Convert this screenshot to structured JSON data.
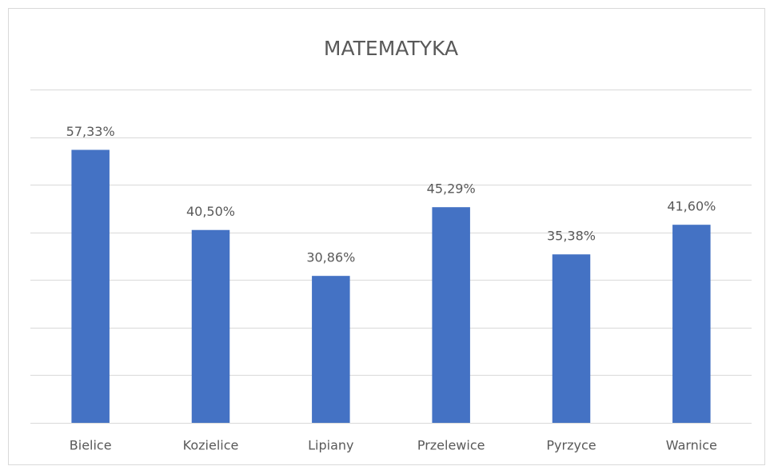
{
  "chart_data": {
    "type": "bar",
    "title": "MATEMATYKA",
    "categories": [
      "Bielice",
      "Kozielice",
      "Lipiany",
      "Przelewice",
      "Pyrzyce",
      "Warnice"
    ],
    "values": [
      57.33,
      40.5,
      30.86,
      45.29,
      35.38,
      41.6
    ],
    "value_labels": [
      "57,33%",
      "40,50%",
      "30,86%",
      "45,29%",
      "35,38%",
      "41,60%"
    ],
    "color": "#4472c4",
    "ylim": [
      0,
      70
    ],
    "yticks": [
      0,
      10,
      20,
      30,
      40,
      50,
      60,
      70
    ],
    "grid": true
  }
}
